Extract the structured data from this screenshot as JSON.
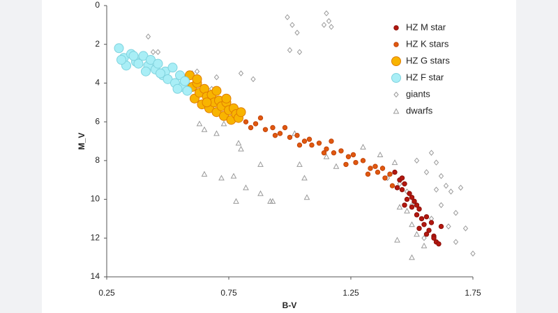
{
  "chart_data": {
    "type": "scatter",
    "x_label": "B-V",
    "y_label": "M_V",
    "xlim": [
      0.25,
      1.75
    ],
    "ylim": [
      0,
      14
    ],
    "y_inverted": true,
    "xticks": [
      0.25,
      0.75,
      1.25,
      1.75
    ],
    "yticks": [
      0,
      2,
      4,
      6,
      8,
      10,
      12,
      14
    ],
    "grid": false,
    "legend": "upper right",
    "series": [
      {
        "name": "HZ M star",
        "color": "#b3170f",
        "edgecolor": "#8a0f08",
        "marker": "circle-small",
        "x": [
          1.43,
          1.45,
          1.46,
          1.47,
          1.48,
          1.49,
          1.5,
          1.51,
          1.52,
          1.53,
          1.54,
          1.55,
          1.56,
          1.57,
          1.58,
          1.59,
          1.6,
          1.61,
          1.44,
          1.47,
          1.5,
          1.53,
          1.56,
          1.59,
          1.62,
          1.46,
          1.52
        ],
        "values": [
          8.6,
          9.0,
          9.5,
          9.2,
          10.0,
          9.7,
          10.4,
          10.1,
          10.8,
          10.5,
          11.0,
          11.3,
          10.9,
          11.6,
          11.2,
          11.9,
          12.2,
          12.3,
          9.4,
          10.3,
          9.9,
          11.5,
          11.8,
          12.0,
          11.4,
          8.9,
          10.3
        ]
      },
      {
        "name": "HZ K stars",
        "color": "#e0580f",
        "edgecolor": "#c2440a",
        "marker": "circle-small",
        "x": [
          0.82,
          0.86,
          0.9,
          0.93,
          0.96,
          1.0,
          1.03,
          1.06,
          1.09,
          1.12,
          1.15,
          1.18,
          1.21,
          1.24,
          1.27,
          1.3,
          1.33,
          1.36,
          1.39,
          1.42,
          0.88,
          0.98,
          1.08,
          1.17,
          1.26,
          1.35,
          1.41,
          0.84,
          0.94,
          1.04,
          1.14,
          1.23,
          1.32,
          1.38
        ],
        "values": [
          6.0,
          6.1,
          6.4,
          6.3,
          6.6,
          6.8,
          6.7,
          7.0,
          7.2,
          7.1,
          7.4,
          7.6,
          7.5,
          7.8,
          8.1,
          8.0,
          8.4,
          8.6,
          8.9,
          9.3,
          5.8,
          6.3,
          6.9,
          7.0,
          7.7,
          8.3,
          8.7,
          6.3,
          6.7,
          7.2,
          7.6,
          8.2,
          8.7,
          8.4
        ]
      },
      {
        "name": "HZ G stars",
        "color": "#f8b400",
        "edgecolor": "#e07d00",
        "marker": "circle-large",
        "x": [
          0.59,
          0.6,
          0.61,
          0.62,
          0.63,
          0.64,
          0.65,
          0.66,
          0.67,
          0.68,
          0.69,
          0.7,
          0.71,
          0.72,
          0.73,
          0.74,
          0.75,
          0.76,
          0.77,
          0.78,
          0.79,
          0.8,
          0.62,
          0.66,
          0.7,
          0.74
        ],
        "values": [
          3.6,
          4.2,
          4.8,
          4.0,
          4.5,
          5.1,
          4.3,
          4.7,
          5.3,
          4.6,
          5.0,
          5.5,
          4.9,
          5.2,
          5.7,
          5.0,
          5.4,
          5.9,
          5.3,
          5.6,
          5.8,
          5.5,
          3.8,
          5.0,
          4.4,
          4.8
        ]
      },
      {
        "name": "HZ F star",
        "color": "#a9eef6",
        "edgecolor": "#7fd3de",
        "marker": "circle-large",
        "x": [
          0.3,
          0.32,
          0.33,
          0.35,
          0.37,
          0.38,
          0.4,
          0.42,
          0.43,
          0.45,
          0.46,
          0.48,
          0.49,
          0.5,
          0.52,
          0.53,
          0.55,
          0.56,
          0.57,
          0.58,
          0.31,
          0.36,
          0.41,
          0.47,
          0.54
        ],
        "values": [
          2.2,
          2.7,
          3.1,
          2.5,
          2.9,
          3.0,
          2.6,
          3.1,
          2.8,
          3.3,
          3.0,
          3.6,
          3.4,
          3.8,
          3.2,
          4.0,
          3.6,
          4.2,
          3.9,
          4.4,
          2.8,
          2.6,
          3.4,
          3.5,
          4.3
        ]
      },
      {
        "name": "giants",
        "color": "none",
        "edgecolor": "#9a9a9a",
        "marker": "diamond",
        "x": [
          0.42,
          0.44,
          0.46,
          0.6,
          0.62,
          0.68,
          0.7,
          0.8,
          0.85,
          0.99,
          1.01,
          1.03,
          1.04,
          1.0,
          1.15,
          1.16,
          1.17,
          1.14,
          1.38,
          1.4,
          1.45,
          1.48,
          1.5,
          1.52,
          1.56,
          1.58,
          1.6,
          1.62,
          1.64,
          1.66,
          1.68,
          1.7,
          1.62,
          1.58,
          1.55,
          1.65,
          1.68,
          1.75,
          1.72,
          1.6
        ],
        "values": [
          1.6,
          2.4,
          2.4,
          3.5,
          3.4,
          4.3,
          3.7,
          3.5,
          3.8,
          0.6,
          1.0,
          1.4,
          2.4,
          2.3,
          0.4,
          0.8,
          1.1,
          1.0,
          8.4,
          8.9,
          9.2,
          9.6,
          10.3,
          8.0,
          8.6,
          7.6,
          8.1,
          8.8,
          9.3,
          9.6,
          10.7,
          9.4,
          10.3,
          11.0,
          12.0,
          11.4,
          12.2,
          12.8,
          11.5,
          9.5
        ]
      },
      {
        "name": "dwarfs",
        "color": "none",
        "edgecolor": "#9a9a9a",
        "marker": "triangle",
        "x": [
          0.48,
          0.6,
          0.63,
          0.65,
          0.7,
          0.73,
          0.79,
          0.8,
          0.65,
          0.72,
          0.77,
          0.82,
          0.78,
          0.88,
          0.88,
          0.92,
          0.93,
          1.02,
          1.04,
          1.06,
          1.07,
          1.15,
          1.19,
          1.3,
          1.37,
          1.43,
          1.45,
          1.48,
          1.5,
          1.52,
          1.55,
          1.44,
          1.5
        ],
        "values": [
          3.6,
          3.5,
          6.1,
          6.4,
          6.6,
          6.1,
          7.1,
          7.4,
          8.7,
          8.9,
          8.8,
          9.4,
          10.1,
          8.2,
          9.7,
          10.1,
          10.1,
          6.6,
          8.2,
          8.9,
          9.9,
          7.8,
          8.3,
          7.3,
          7.7,
          8.1,
          10.4,
          10.6,
          11.3,
          11.8,
          12.4,
          12.1,
          13.0
        ]
      }
    ]
  }
}
